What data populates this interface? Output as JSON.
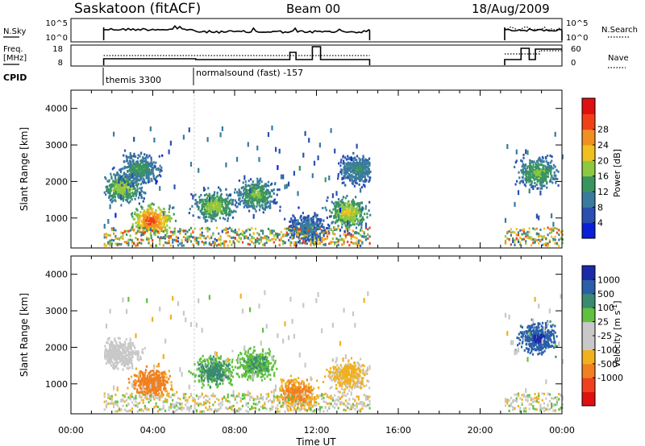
{
  "header": {
    "title": "Saskatoon (fitACF)",
    "beam": "Beam 00",
    "date": "18/Aug/2009"
  },
  "status": {
    "nsky_label": "N.Sky",
    "nsky_ticks": [
      "10^5",
      "10^0"
    ],
    "freq_label": "Freq.",
    "freq_unit": "[MHz]",
    "freq_ticks": [
      "18",
      "8"
    ],
    "nsearch_label": "N.Search",
    "nsearch_ticks": [
      "10^5",
      "10^0"
    ],
    "nave_label": "Nave",
    "nave_ticks": [
      "60",
      "0"
    ],
    "cpid_label": "CPID",
    "cpid_entries": [
      {
        "label": "themis 3300",
        "start_hour": 1.6
      },
      {
        "label": "normalsound (fast) -157",
        "start_hour": 6.1
      }
    ]
  },
  "x_ticks": [
    "00:00",
    "04:00",
    "08:00",
    "12:00",
    "16:00",
    "20:00",
    "00:00"
  ],
  "x_label": "Time UT",
  "y_label": "Slant Range [km]",
  "y_ticks": [
    "1000",
    "2000",
    "3000",
    "4000"
  ],
  "power_scale": {
    "label": "Power [dB]",
    "ticks": [
      "4",
      "8",
      "12",
      "16",
      "20",
      "24",
      "28"
    ],
    "colors": [
      "#0a1fd8",
      "#2a4fb0",
      "#3a7a9e",
      "#3a9460",
      "#8cc840",
      "#f0c020",
      "#f09020",
      "#f04018",
      "#e01010"
    ]
  },
  "velocity_scale": {
    "label": "Velocity [m s",
    "label_sup": "-1",
    "label_end": "]",
    "ticks": [
      "1000",
      "500",
      "100",
      "25",
      "-25",
      "-100",
      "-500",
      "-1000"
    ],
    "colors": [
      "#1a2aa8",
      "#2a5fa8",
      "#3a8a70",
      "#60c040",
      "#c8c8c8",
      "#c8c8c8",
      "#f0b020",
      "#f08020",
      "#f04020",
      "#e01010"
    ]
  },
  "chart_data": [
    {
      "type": "heatmap",
      "title": "Power",
      "x_range_hours": [
        0,
        24
      ],
      "y_range_km": [
        180,
        4500
      ],
      "data_windows_hours": [
        [
          1.6,
          14.6
        ],
        [
          21.2,
          24
        ]
      ],
      "features": [
        {
          "t": 3.9,
          "range_km": 900,
          "value_db": 28
        },
        {
          "t": 2.5,
          "range_km": 1800,
          "value_db": 18
        },
        {
          "t": 3.3,
          "range_km": 2300,
          "value_db": 14
        },
        {
          "t": 7.0,
          "range_km": 1300,
          "value_db": 18
        },
        {
          "t": 9.0,
          "range_km": 1600,
          "value_db": 16
        },
        {
          "t": 11.5,
          "range_km": 700,
          "value_db": 10
        },
        {
          "t": 13.5,
          "range_km": 1100,
          "value_db": 20
        },
        {
          "t": 14.0,
          "range_km": 2300,
          "value_db": 12
        },
        {
          "t": 22.8,
          "range_km": 2200,
          "value_db": 16
        }
      ]
    },
    {
      "type": "heatmap",
      "title": "Velocity",
      "x_range_hours": [
        0,
        24
      ],
      "y_range_km": [
        180,
        4500
      ],
      "data_windows_hours": [
        [
          1.6,
          14.6
        ],
        [
          21.2,
          24
        ]
      ],
      "features": [
        {
          "t": 2.3,
          "range_km": 1800,
          "value_ms": 0
        },
        {
          "t": 3.9,
          "range_km": 1000,
          "value_ms": -200
        },
        {
          "t": 7.0,
          "range_km": 1300,
          "value_ms": 150
        },
        {
          "t": 9.0,
          "range_km": 1500,
          "value_ms": 120
        },
        {
          "t": 11.0,
          "range_km": 700,
          "value_ms": -150
        },
        {
          "t": 13.5,
          "range_km": 1200,
          "value_ms": -60
        },
        {
          "t": 22.8,
          "range_km": 2200,
          "value_ms": 700
        }
      ]
    }
  ]
}
